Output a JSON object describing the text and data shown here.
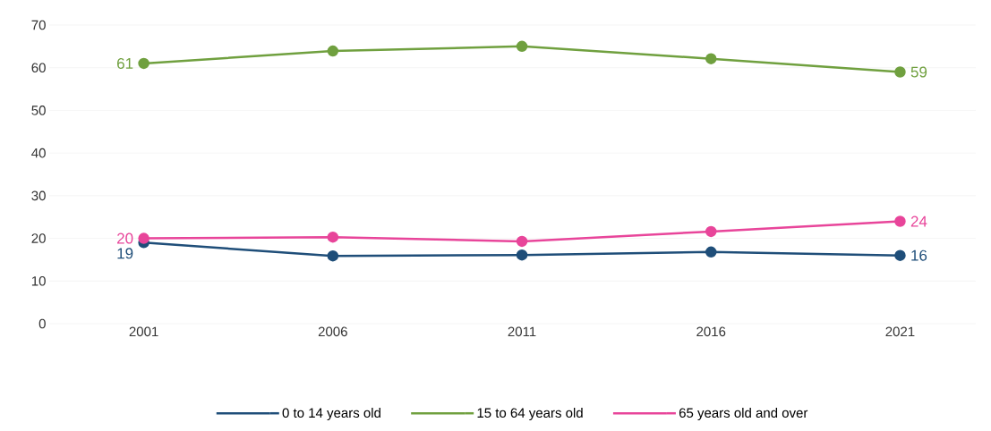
{
  "chart_data": {
    "type": "line",
    "categories": [
      "2001",
      "2006",
      "2011",
      "2016",
      "2021"
    ],
    "series": [
      {
        "name": "0 to 14 years old",
        "color": "#1f4e79",
        "values": [
          19,
          15.9,
          16.1,
          16.8,
          16
        ],
        "value_labels": [
          "19",
          null,
          null,
          null,
          "16"
        ]
      },
      {
        "name": "15 to 64 years old",
        "color": "#70a03f",
        "values": [
          61,
          63.9,
          65.0,
          62.1,
          59
        ],
        "value_labels": [
          "61",
          null,
          null,
          null,
          "59"
        ]
      },
      {
        "name": "65 years old and over",
        "color": "#e8459a",
        "values": [
          20,
          20.3,
          19.3,
          21.6,
          24
        ],
        "value_labels": [
          "20",
          null,
          null,
          null,
          "24"
        ]
      }
    ],
    "ylim": [
      0,
      70
    ],
    "yticks": [
      0,
      10,
      20,
      30,
      40,
      50,
      60,
      70
    ],
    "grid": "y",
    "legend": "bottom",
    "marker": "circle",
    "line_style": "solid"
  }
}
